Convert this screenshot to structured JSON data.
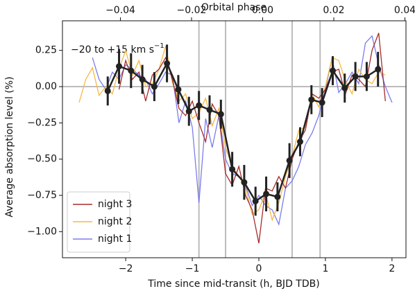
{
  "chart_data": {
    "type": "line",
    "xlabel": "Time since mid-transit (h, BJD TDB)",
    "ylabel": "Average absorption level (%)",
    "x2label": "Orbital phase",
    "annotation": "−20 to +15 km s",
    "annotation_superscript": "−1",
    "xlim": [
      -2.95,
      2.21
    ],
    "ylim": [
      -1.18,
      0.454
    ],
    "x2lim": [
      -0.0563,
      0.0403
    ],
    "xticks": [
      {
        "value": -2,
        "label": "−2"
      },
      {
        "value": -1,
        "label": "−1"
      },
      0,
      1,
      2
    ],
    "yticks": [
      {
        "value": 0.25,
        "label": "0.25"
      },
      {
        "value": 0,
        "label": "0.00"
      },
      {
        "value": -0.25,
        "label": "−0.25"
      },
      {
        "value": -0.5,
        "label": "−0.50"
      },
      {
        "value": -0.75,
        "label": "−0.75"
      },
      {
        "value": -1,
        "label": "−1.00"
      }
    ],
    "x2ticks": [
      {
        "value": -0.04,
        "label": "−0.04"
      },
      {
        "value": -0.02,
        "label": "−0.02"
      },
      {
        "value": 0,
        "label": "0.00"
      },
      {
        "value": 0.02,
        "label": "0.02"
      },
      {
        "value": 0.04,
        "label": "0.04"
      }
    ],
    "vlines": [
      -0.9,
      -0.5,
      0.5,
      0.92
    ],
    "hlines": [
      0
    ],
    "legend_position": "lower left",
    "x": [
      -2.7,
      -2.6,
      -2.5,
      -2.4,
      -2.3,
      -2.2,
      -2.1,
      -2.0,
      -1.9,
      -1.8,
      -1.7,
      -1.6,
      -1.5,
      -1.4,
      -1.3,
      -1.2,
      -1.1,
      -1.0,
      -0.9,
      -0.8,
      -0.7,
      -0.6,
      -0.5,
      -0.4,
      -0.3,
      -0.2,
      -0.1,
      0.0,
      0.1,
      0.2,
      0.3,
      0.4,
      0.5,
      0.6,
      0.7,
      0.8,
      0.9,
      1.0,
      1.1,
      1.2,
      1.3,
      1.4,
      1.5,
      1.6,
      1.7,
      1.8,
      1.9,
      2.0
    ],
    "series": [
      {
        "name": "night 3",
        "color": "#a52a2a",
        "values": [
          null,
          null,
          null,
          null,
          null,
          null,
          -0.02,
          0.18,
          0.05,
          0.1,
          -0.1,
          0.08,
          0.12,
          0.2,
          0.05,
          -0.15,
          -0.2,
          -0.1,
          -0.25,
          -0.38,
          -0.12,
          -0.2,
          -0.6,
          -0.68,
          -0.55,
          -0.75,
          -0.85,
          -1.08,
          -0.7,
          -0.72,
          -0.62,
          -0.7,
          -0.5,
          -0.38,
          -0.3,
          -0.05,
          -0.08,
          -0.02,
          0.1,
          0.12,
          -0.05,
          0.08,
          0.05,
          0.0,
          0.25,
          0.37,
          -0.1,
          null
        ]
      },
      {
        "name": "night 2",
        "color": "#f5b942",
        "values": [
          -0.11,
          0.05,
          0.13,
          -0.06,
          0.0,
          -0.05,
          0.12,
          0.25,
          0.08,
          0.18,
          0.0,
          0.02,
          0.12,
          0.28,
          0.03,
          -0.1,
          -0.05,
          -0.22,
          -0.18,
          -0.08,
          -0.27,
          -0.15,
          -0.42,
          -0.55,
          -0.62,
          -0.7,
          -0.88,
          -0.85,
          -0.73,
          -0.92,
          -0.8,
          -0.62,
          -0.48,
          -0.3,
          -0.28,
          -0.05,
          -0.14,
          0.0,
          0.2,
          0.18,
          0.04,
          -0.05,
          0.12,
          0.05,
          0.02,
          0.1,
          0.08,
          null
        ]
      },
      {
        "name": "night 1",
        "color": "#7b7bf0",
        "values": [
          null,
          null,
          0.2,
          0.05,
          -0.02,
          0.1,
          0.05,
          0.15,
          0.12,
          0.08,
          0.05,
          -0.05,
          0.02,
          0.1,
          0.08,
          -0.25,
          -0.1,
          -0.28,
          -0.8,
          -0.22,
          -0.42,
          -0.2,
          -0.5,
          -0.6,
          -0.62,
          -0.68,
          -0.82,
          -0.75,
          -0.82,
          -0.85,
          -0.95,
          -0.7,
          -0.65,
          -0.55,
          -0.4,
          -0.32,
          -0.2,
          -0.02,
          0.2,
          -0.04,
          0.02,
          0.1,
          0.02,
          0.3,
          0.35,
          0.15,
          0.0,
          -0.11
        ]
      }
    ],
    "binned": {
      "color": "#222222",
      "x": [
        -2.27,
        -2.1,
        -1.92,
        -1.75,
        -1.57,
        -1.38,
        -1.21,
        -1.05,
        -0.9,
        -0.74,
        -0.57,
        -0.4,
        -0.22,
        -0.05,
        0.11,
        0.28,
        0.46,
        0.62,
        0.79,
        0.95,
        1.11,
        1.29,
        1.45,
        1.62,
        1.79
      ],
      "values": [
        -0.03,
        0.14,
        0.11,
        0.05,
        0.0,
        0.16,
        -0.02,
        -0.17,
        -0.13,
        -0.16,
        -0.19,
        -0.57,
        -0.66,
        -0.79,
        -0.74,
        -0.76,
        -0.51,
        -0.38,
        -0.09,
        -0.11,
        0.11,
        -0.01,
        0.07,
        0.07,
        0.12
      ],
      "errors": [
        0.1,
        0.12,
        0.12,
        0.1,
        0.1,
        0.13,
        0.1,
        0.1,
        0.1,
        0.1,
        0.1,
        0.12,
        0.12,
        0.1,
        0.12,
        0.1,
        0.12,
        0.1,
        0.1,
        0.1,
        0.1,
        0.1,
        0.1,
        0.1,
        0.12
      ]
    }
  }
}
